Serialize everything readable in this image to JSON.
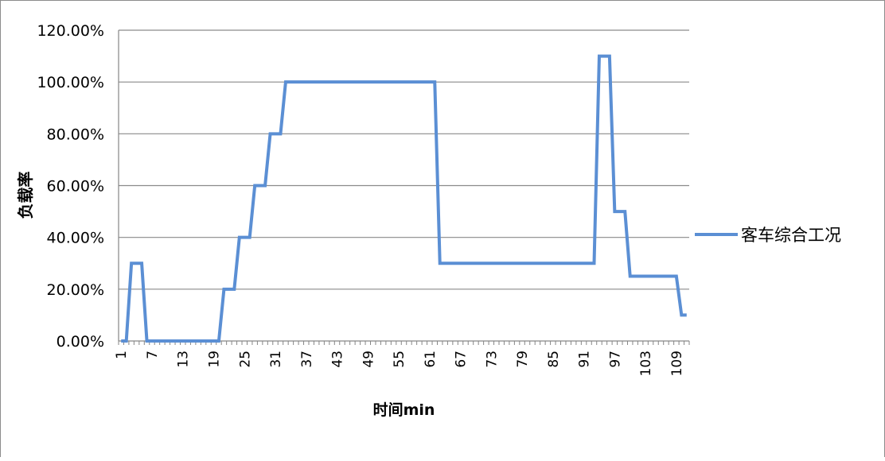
{
  "chart_data": {
    "type": "line",
    "title": "",
    "xlabel": "时间min",
    "ylabel": "负载率",
    "ylim": [
      0,
      1.2
    ],
    "y_ticks": [
      0,
      0.2,
      0.4,
      0.6,
      0.8,
      1.0,
      1.2
    ],
    "y_tick_labels": [
      "0.00%",
      "20.00%",
      "40.00%",
      "60.00%",
      "80.00%",
      "100.00%",
      "120.00%"
    ],
    "x_min": 1,
    "x_max": 111,
    "x_tick_labels": [
      "1",
      "7",
      "13",
      "19",
      "25",
      "31",
      "37",
      "43",
      "49",
      "55",
      "61",
      "67",
      "73",
      "79",
      "85",
      "91",
      "97",
      "103",
      "109"
    ],
    "grid": "horizontal",
    "legend_position": "right",
    "series": [
      {
        "name": "客车综合工况",
        "color": "#5b8fd4",
        "points": [
          [
            1,
            0
          ],
          [
            2,
            0
          ],
          [
            3,
            0.3
          ],
          [
            5,
            0.3
          ],
          [
            6,
            0
          ],
          [
            20,
            0
          ],
          [
            21,
            0.2
          ],
          [
            23,
            0.2
          ],
          [
            24,
            0.4
          ],
          [
            26,
            0.4
          ],
          [
            27,
            0.6
          ],
          [
            29,
            0.6
          ],
          [
            30,
            0.8
          ],
          [
            32,
            0.8
          ],
          [
            33,
            1.0
          ],
          [
            62,
            1.0
          ],
          [
            63,
            0.3
          ],
          [
            93,
            0.3
          ],
          [
            94,
            1.1
          ],
          [
            96,
            1.1
          ],
          [
            97,
            0.5
          ],
          [
            99,
            0.5
          ],
          [
            100,
            0.25
          ],
          [
            109,
            0.25
          ],
          [
            110,
            0.1
          ],
          [
            111,
            0.1
          ]
        ]
      }
    ]
  }
}
